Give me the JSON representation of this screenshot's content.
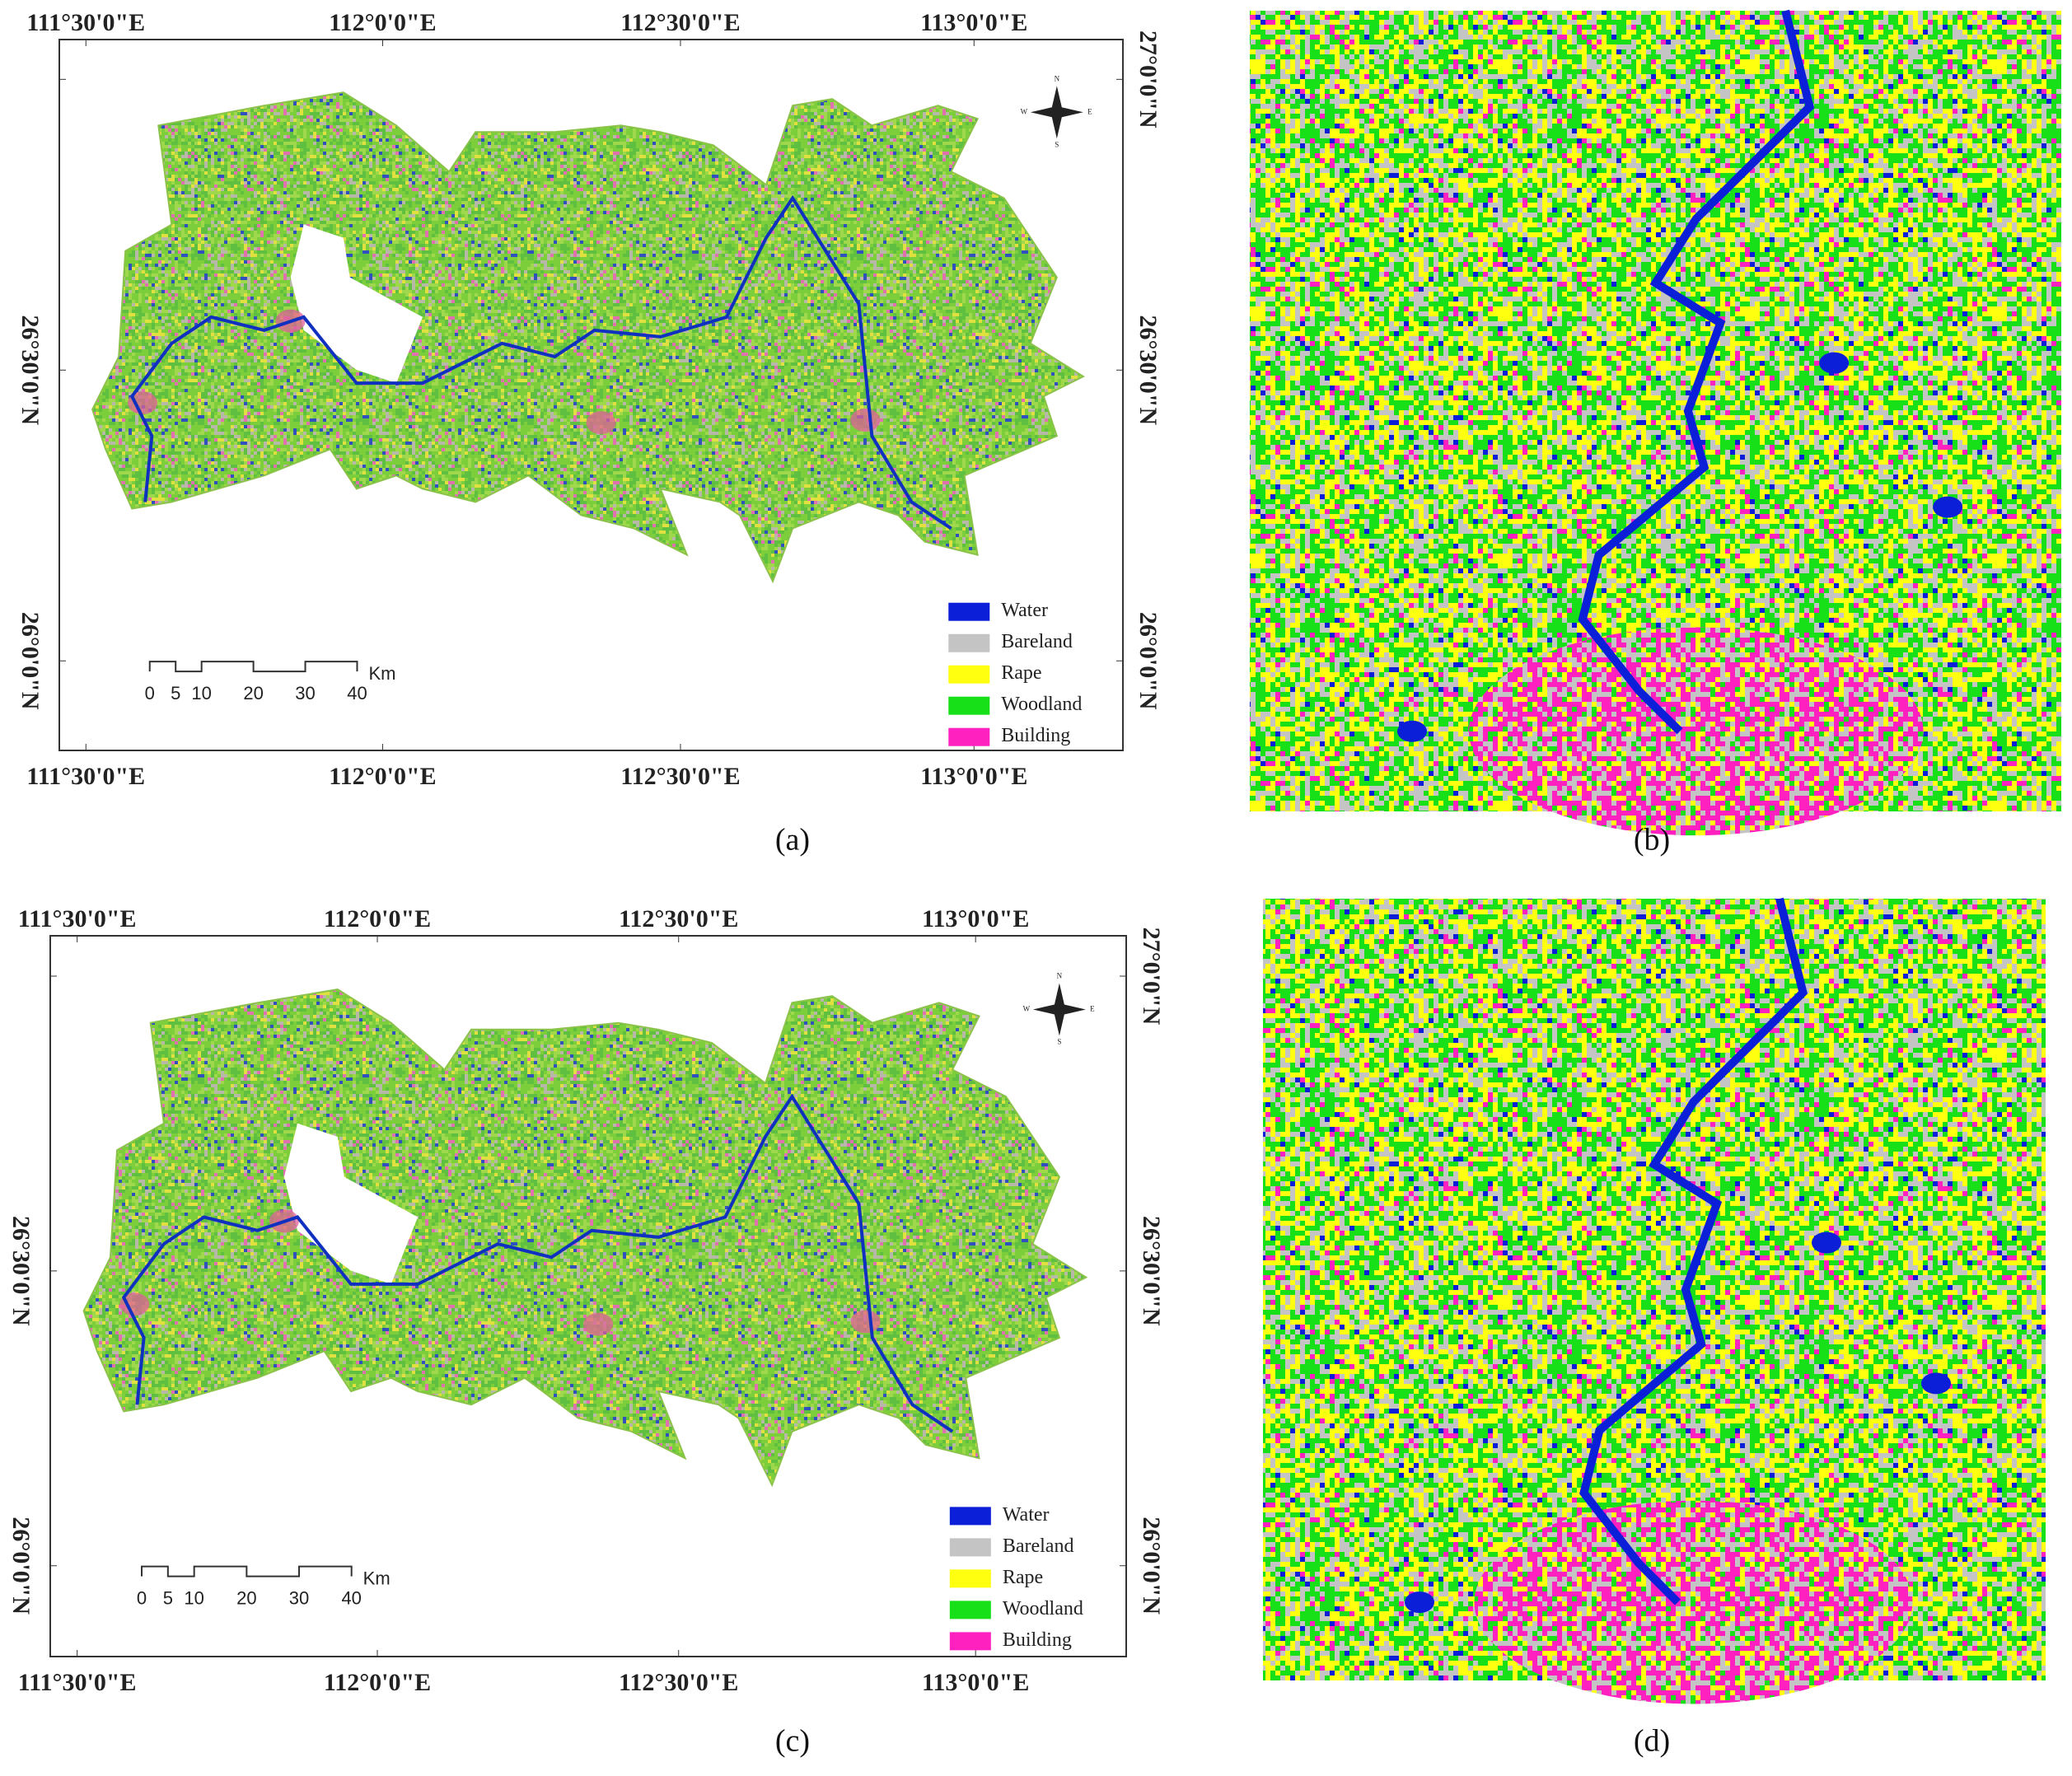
{
  "panels": [
    {
      "label": "(a)",
      "top_labels": [
        "111°30'0\"E",
        "112°0'0\"E",
        "112°30'0\"E",
        "113°0'0\"E"
      ],
      "bottom_labels": [
        "111°30'0\"E",
        "112°0'0\"E",
        "112°30'0\"E",
        "113°0'0\"E"
      ],
      "left_labels": [
        "26°30'0\"N",
        "26°0'0\"N"
      ],
      "right_labels": [
        "27°0'0\"N",
        "26°30'0\"N",
        "26°0'0\"N"
      ],
      "legend": [
        "Water",
        "Bareland",
        "Rape",
        "Woodland",
        "Building"
      ],
      "scale_labels": [
        "0",
        "5",
        "10",
        "20",
        "30",
        "40"
      ],
      "scale_unit": "Km",
      "compass": [
        "N",
        "S",
        "E",
        "W"
      ]
    },
    {
      "label": "(b)"
    },
    {
      "label": "(c)",
      "top_labels": [
        "111°30'0\"E",
        "112°0'0\"E",
        "112°30'0\"E",
        "113°0'0\"E"
      ],
      "bottom_labels": [
        "111°30'0\"E",
        "112°0'0\"E",
        "112°30'0\"E",
        "113°0'0\"E"
      ],
      "left_labels": [
        "26°30'0\"N",
        "26°0'0\"N"
      ],
      "right_labels": [
        "27°0'0\"N",
        "26°30'0\"N",
        "26°0'0\"N"
      ],
      "legend": [
        "Water",
        "Bareland",
        "Rape",
        "Woodland",
        "Building"
      ],
      "scale_labels": [
        "0",
        "5",
        "10",
        "20",
        "30",
        "40"
      ],
      "scale_unit": "Km",
      "compass": [
        "N",
        "S",
        "E",
        "W"
      ]
    },
    {
      "label": "(d)"
    }
  ]
}
